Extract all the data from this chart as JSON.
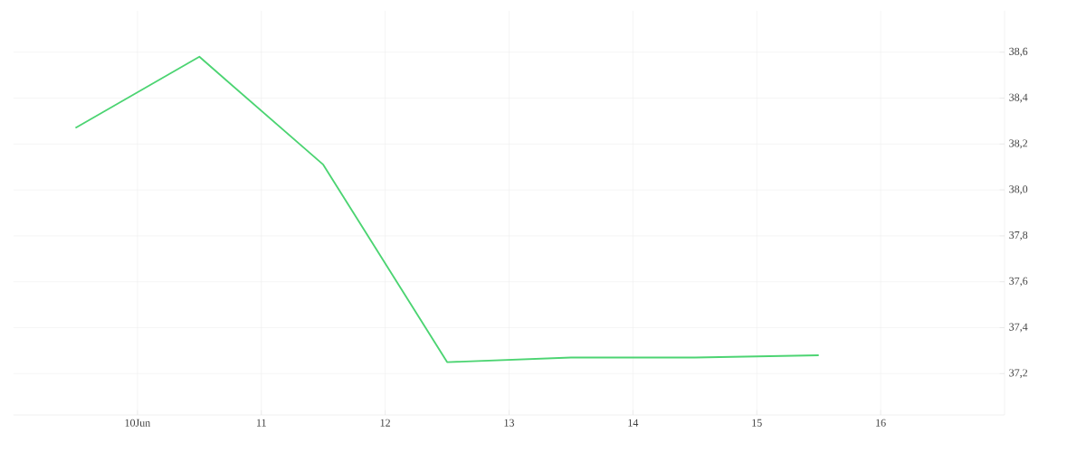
{
  "chart_data": {
    "type": "line",
    "x": [
      9.5,
      10.5,
      11.5,
      12.5,
      13.5,
      14.5,
      15.5
    ],
    "series": [
      {
        "color": "#4cd472",
        "values": [
          38.27,
          38.58,
          38.11,
          37.25,
          37.27,
          37.27,
          37.28
        ]
      }
    ],
    "xlim": [
      9.0,
      17.0
    ],
    "xticks": [
      {
        "value": 10,
        "label": "10Jun"
      },
      11,
      12,
      13,
      14,
      15,
      16
    ],
    "ylim": [
      37.02,
      38.78
    ],
    "yticks": [
      {
        "value": 37.2,
        "label": "37,2"
      },
      {
        "value": 37.4,
        "label": "37,4"
      },
      {
        "value": 37.6,
        "label": "37,6"
      },
      {
        "value": 37.8,
        "label": "37,8"
      },
      {
        "value": 38.0,
        "label": "38,0"
      },
      {
        "value": 38.2,
        "label": "38,2"
      },
      {
        "value": 38.4,
        "label": "38,4"
      },
      {
        "value": 38.6,
        "label": "38,6"
      }
    ],
    "grid": true,
    "marker": "none",
    "line_style": "solid"
  }
}
